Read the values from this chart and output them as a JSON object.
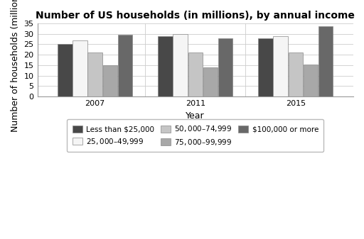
{
  "title": "Number of US households (in millions), by annual income",
  "xlabel": "Year",
  "ylabel": "Number of households (millions)",
  "years": [
    "2007",
    "2011",
    "2015"
  ],
  "categories": [
    "Less than $25,000",
    "$25,000–$49,999",
    "$50,000–$74,999",
    "$75,000–$99,999",
    "$100,000 or more"
  ],
  "values": {
    "2007": [
      25.2,
      27.0,
      21.0,
      14.8,
      29.5
    ],
    "2011": [
      29.0,
      30.0,
      21.2,
      14.0,
      28.0
    ],
    "2015": [
      28.0,
      29.0,
      21.0,
      15.2,
      33.5
    ]
  },
  "colors": [
    "#484848",
    "#f5f5f5",
    "#c5c5c5",
    "#a8a8a8",
    "#686868"
  ],
  "bar_edge_color": "#888888",
  "ylim": [
    0,
    35
  ],
  "yticks": [
    0,
    5,
    10,
    15,
    20,
    25,
    30,
    35
  ],
  "bar_width": 0.15,
  "background_color": "#ffffff",
  "title_fontsize": 10,
  "axis_fontsize": 9,
  "tick_fontsize": 8,
  "legend_fontsize": 7.5
}
